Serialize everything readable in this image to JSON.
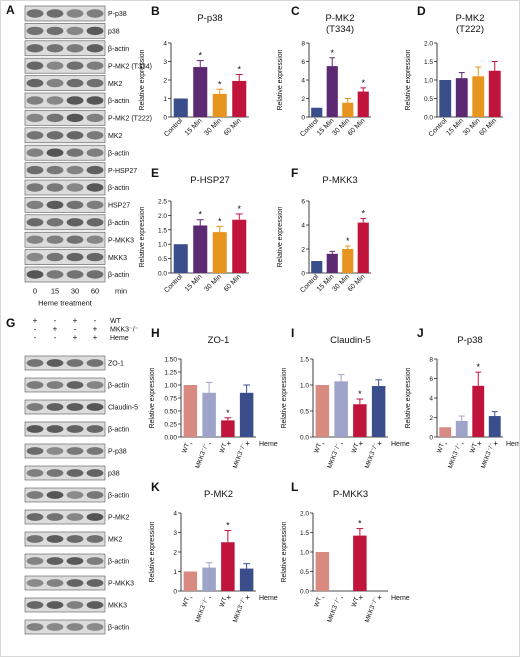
{
  "panels": {
    "A": {
      "letter": "A",
      "rows": [
        "P-p38",
        "p38",
        "β-actin",
        "P-MK2 (T334)",
        "MK2",
        "β-actin",
        "P-MK2 (T222)",
        "MK2",
        "β-actin",
        "P-HSP27",
        "β-actin",
        "HSP27",
        "β-actin",
        "P-MKK3",
        "MKK3",
        "β-actin"
      ],
      "lanes": [
        "0",
        "15",
        "30",
        "60"
      ],
      "lanes_unit": "min",
      "xlabel": "Heme treatment"
    },
    "G": {
      "letter": "G",
      "conditions": [
        {
          "label": "WT",
          "signs": [
            "+",
            "-",
            "+",
            "-"
          ]
        },
        {
          "label": "MKK3⁻/⁻",
          "signs": [
            "-",
            "+",
            "-",
            "+"
          ]
        },
        {
          "label": "Heme",
          "signs": [
            "-",
            "-",
            "+",
            "+"
          ]
        }
      ],
      "rows": [
        "ZO-1",
        "β-actin",
        "Claudin-5",
        "β-actin",
        "P-p38",
        "p38",
        "β-actin",
        "P-MK2",
        "MK2",
        "β-actin",
        "P-MKK3",
        "MKK3",
        "β-actin"
      ]
    }
  },
  "colors": {
    "control": "#3b4e8c",
    "t15": "#5c2a73",
    "t30": "#e8951f",
    "t60": "#c0143c",
    "wt": "#d98a80",
    "mkk3": "#9ea3c9",
    "wt_heme": "#c0143c",
    "mkk3_heme": "#3b4e8c"
  },
  "chart_data": [
    {
      "id": "B",
      "letter": "B",
      "type": "bar",
      "title": "P-p38",
      "ylabel": "Relative expression",
      "categories": [
        "Control",
        "15 Min",
        "30 Min",
        "60 Min"
      ],
      "values": [
        1.0,
        2.7,
        1.25,
        1.95
      ],
      "errors": [
        0,
        0.35,
        0.25,
        0.35
      ],
      "sig": [
        false,
        true,
        true,
        true
      ],
      "ylim": [
        0,
        4
      ],
      "yticks": [
        "0",
        "1",
        "2",
        "3",
        "4"
      ],
      "color_keys": [
        "control",
        "t15",
        "t30",
        "t60"
      ]
    },
    {
      "id": "C",
      "letter": "C",
      "type": "bar",
      "title": "P-MK2\n(T334)",
      "ylabel": "Relative expression",
      "categories": [
        "Control",
        "15 Min",
        "30 Min",
        "60 Min"
      ],
      "values": [
        1.0,
        5.5,
        1.55,
        2.75
      ],
      "errors": [
        0,
        0.9,
        0.45,
        0.4
      ],
      "sig": [
        false,
        true,
        false,
        true
      ],
      "ylim": [
        0,
        8
      ],
      "yticks": [
        "0",
        "2",
        "4",
        "6",
        "8"
      ],
      "color_keys": [
        "control",
        "t15",
        "t30",
        "t60"
      ]
    },
    {
      "id": "D",
      "letter": "D",
      "type": "bar",
      "title": "P-MK2\n(T222)",
      "ylabel": "Relative expression",
      "categories": [
        "Control",
        "15 Min",
        "30 Min",
        "60 Min"
      ],
      "values": [
        1.0,
        1.05,
        1.1,
        1.25
      ],
      "errors": [
        0,
        0.15,
        0.25,
        0.25
      ],
      "sig": [
        false,
        false,
        false,
        false
      ],
      "ylim": [
        0,
        2
      ],
      "yticks": [
        "0.0",
        "0.5",
        "1.0",
        "1.5",
        "2.0"
      ],
      "color_keys": [
        "control",
        "t15",
        "t30",
        "t60"
      ]
    },
    {
      "id": "E",
      "letter": "E",
      "type": "bar",
      "title": "P-HSP27",
      "ylabel": "Relative expression",
      "categories": [
        "Control",
        "15 Min",
        "30 Min",
        "60 Min"
      ],
      "values": [
        1.0,
        1.65,
        1.42,
        1.85
      ],
      "errors": [
        0,
        0.2,
        0.2,
        0.2
      ],
      "sig": [
        false,
        true,
        true,
        true
      ],
      "ylim": [
        0,
        2.5
      ],
      "yticks": [
        "0.0",
        "0.5",
        "1.0",
        "1.5",
        "2.0",
        "2.5"
      ],
      "color_keys": [
        "control",
        "t15",
        "t30",
        "t60"
      ]
    },
    {
      "id": "F",
      "letter": "F",
      "type": "bar",
      "title": "P-MKK3",
      "ylabel": "Relative expression",
      "categories": [
        "Control",
        "15 Min",
        "30 Min",
        "60 Min"
      ],
      "values": [
        1.0,
        1.6,
        2.0,
        4.2
      ],
      "errors": [
        0,
        0.2,
        0.25,
        0.35
      ],
      "sig": [
        false,
        false,
        true,
        true
      ],
      "ylim": [
        0,
        6
      ],
      "yticks": [
        "0",
        "2",
        "4",
        "6"
      ],
      "color_keys": [
        "control",
        "t15",
        "t30",
        "t60"
      ]
    },
    {
      "id": "H",
      "letter": "H",
      "type": "bar",
      "title": "ZO-1",
      "ylabel": "Relative expression",
      "groups": [
        "WT",
        "MKK3⁻/⁻",
        "WT",
        "MKK3⁻/⁻"
      ],
      "heme": [
        "-",
        "-",
        "+",
        "+"
      ],
      "heme_label": "Heme",
      "values": [
        1.0,
        0.85,
        0.32,
        0.85
      ],
      "errors": [
        0,
        0.2,
        0.05,
        0.15
      ],
      "sig": [
        false,
        false,
        true,
        false
      ],
      "ylim": [
        0,
        1.5
      ],
      "yticks": [
        "0.00",
        "0.25",
        "0.50",
        "0.75",
        "1.00",
        "1.25",
        "1.50"
      ],
      "color_keys": [
        "wt",
        "mkk3",
        "wt_heme",
        "mkk3_heme"
      ]
    },
    {
      "id": "I",
      "letter": "I",
      "type": "bar",
      "title": "Claudin-5",
      "ylabel": "Relative expression",
      "groups": [
        "WT",
        "MKK3⁻/⁻",
        "WT",
        "MKK3⁻/⁻"
      ],
      "heme": [
        "-",
        "-",
        "+",
        "+"
      ],
      "heme_label": "Heme",
      "values": [
        1.0,
        1.07,
        0.63,
        0.98
      ],
      "errors": [
        0,
        0.13,
        0.1,
        0.12
      ],
      "sig": [
        false,
        false,
        true,
        false
      ],
      "ylim": [
        0,
        1.5
      ],
      "yticks": [
        "0.0",
        "0.5",
        "1.0",
        "1.5"
      ],
      "color_keys": [
        "wt",
        "mkk3",
        "wt_heme",
        "mkk3_heme"
      ]
    },
    {
      "id": "J",
      "letter": "J",
      "type": "bar",
      "title": "P-p38",
      "ylabel": "Relative expression",
      "groups": [
        "WT",
        "MKK3⁻/⁻",
        "WT",
        "MKK3⁻/⁻"
      ],
      "heme": [
        "-",
        "-",
        "+",
        "+"
      ],
      "heme_label": "Heme",
      "values": [
        1.0,
        1.65,
        5.25,
        2.15
      ],
      "errors": [
        0,
        0.5,
        1.4,
        0.45
      ],
      "sig": [
        false,
        false,
        true,
        false
      ],
      "ylim": [
        0,
        8
      ],
      "yticks": [
        "0",
        "2",
        "4",
        "6",
        "8"
      ],
      "color_keys": [
        "wt",
        "mkk3",
        "wt_heme",
        "mkk3_heme"
      ]
    },
    {
      "id": "K",
      "letter": "K",
      "type": "bar",
      "title": "P-MK2",
      "ylabel": "Relative expression",
      "groups": [
        "WT",
        "MKK3⁻/⁻",
        "WT",
        "MKK3⁻/⁻"
      ],
      "heme": [
        "-",
        "-",
        "+",
        "+"
      ],
      "heme_label": "Heme",
      "values": [
        1.0,
        1.2,
        2.5,
        1.15
      ],
      "errors": [
        0,
        0.25,
        0.6,
        0.25
      ],
      "sig": [
        false,
        false,
        true,
        false
      ],
      "ylim": [
        0,
        4
      ],
      "yticks": [
        "0",
        "1",
        "2",
        "3",
        "4"
      ],
      "color_keys": [
        "wt",
        "mkk3",
        "wt_heme",
        "mkk3_heme"
      ]
    },
    {
      "id": "L",
      "letter": "L",
      "type": "bar",
      "title": "P-MKK3",
      "ylabel": "Relative expression",
      "groups": [
        "WT",
        "MKK3⁻/⁻",
        "WT",
        "MKK3⁻/⁻"
      ],
      "heme": [
        "-",
        "-",
        "+",
        "+"
      ],
      "heme_label": "Heme",
      "values": [
        1.0,
        0,
        1.42,
        0
      ],
      "errors": [
        0,
        0,
        0.18,
        0
      ],
      "sig": [
        false,
        false,
        true,
        false
      ],
      "ylim": [
        0,
        2
      ],
      "yticks": [
        "0.0",
        "0.5",
        "1.0",
        "1.5",
        "2.0"
      ],
      "color_keys": [
        "wt",
        "mkk3",
        "wt_heme",
        "mkk3_heme"
      ]
    }
  ]
}
